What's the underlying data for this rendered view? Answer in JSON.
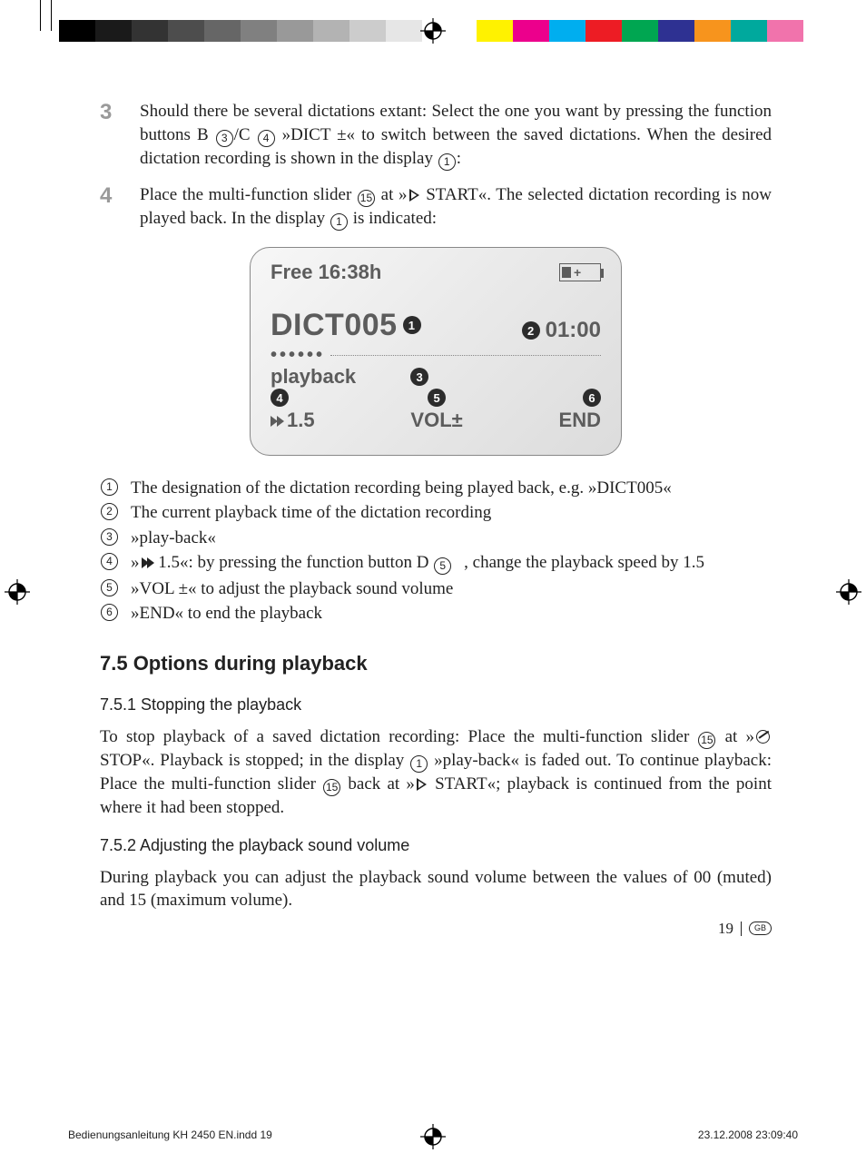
{
  "reg_colors_left": [
    "#000000",
    "#1a1a1a",
    "#333333",
    "#4d4d4d",
    "#666666",
    "#808080",
    "#999999",
    "#b3b3b3",
    "#cccccc",
    "#e6e6e6"
  ],
  "reg_colors_right": [
    "#fff200",
    "#ec008c",
    "#00aeef",
    "#ed1c24",
    "#00a651",
    "#2e3192",
    "#f7941d",
    "#00a99d",
    "#f173ac",
    "#ffffff"
  ],
  "steps": [
    {
      "num": "3",
      "pre": "Should there be several dictations extant: Select the one you want by pressing the function buttons B ",
      "c1": "3",
      "mid1": "/C ",
      "c2": "4",
      "mid2": " »DICT ±« to switch between the saved dictations. When the desired dictation recording is shown in the display ",
      "c3": "1",
      "post": ":"
    },
    {
      "num": "4",
      "pre": "Place the multi-function slider ",
      "c1": "15",
      "mid1": " at »",
      "icon": "play",
      "mid2": " START«. The selected dictation recording is now played back. In the display ",
      "c2": "1",
      "post": " is indicated:"
    }
  ],
  "display": {
    "free": "Free 16:38h",
    "dict": "DICT005",
    "badge_dict": "1",
    "time": "01:00",
    "badge_time": "2",
    "playback": "playback",
    "badge_pb": "3",
    "badge_spd": "4",
    "spd": "1.5",
    "badge_vol": "5",
    "vol": "VOL±",
    "badge_end": "6",
    "end": "END"
  },
  "legend": [
    {
      "n": "1",
      "t": "The designation of the dictation recording being played back, e.g. »DICT005«"
    },
    {
      "n": "2",
      "t": "The current playback time of the dictation recording"
    },
    {
      "n": "3",
      "t": "»play-back«"
    },
    {
      "n": "4",
      "pre": "»",
      "icon": "ffwd",
      "mid": " 1.5«: by pressing the function button D ",
      "c": "5",
      "post": ", change the playback speed by 1.5"
    },
    {
      "n": "5",
      "t": "»VOL ±« to adjust the playback sound volume"
    },
    {
      "n": "6",
      "t": "»END« to end the playback"
    }
  ],
  "section": "7.5 Options during playback",
  "sub1": "7.5.1 Stopping the playback",
  "para1": {
    "a": "To stop playback of a saved dictation recording: Place the multi-function slider ",
    "c1": "15",
    "b": " at »",
    "c": " STOP«. Playback is stopped; in the display ",
    "c2": "1",
    "d": " »play-back« is faded out. To continue playback: Place the multi-function slider ",
    "c3": "15",
    "e": " back at »",
    "f": " START«; playback is continued from the point where it had been stopped."
  },
  "sub2": "7.5.2 Adjusting the playback sound volume",
  "para2": "During playback you can adjust the playback sound volume between the values of 00 (muted) and 15 (maximum volume).",
  "pagenum": "19",
  "gb": "GB",
  "imprint_left": "Bedienungsanleitung KH 2450 EN.indd   19",
  "imprint_right": "23.12.2008   23:09:40"
}
